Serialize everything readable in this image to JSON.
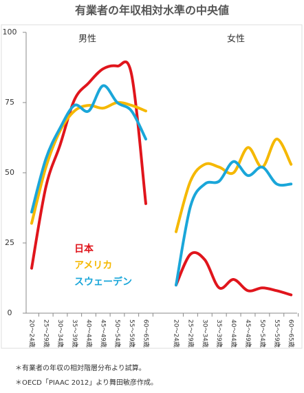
{
  "chart_data": {
    "type": "line",
    "title": "有業者の年収相対水準の中央値",
    "ylim": [
      0,
      100
    ],
    "yticks": [
      0,
      25,
      50,
      75,
      100
    ],
    "categories": [
      "20～24歳",
      "25～29歳",
      "30～34歳",
      "35～39歳",
      "40～44歳",
      "45～49歳",
      "50～54歳",
      "55～59歳",
      "60～65歳"
    ],
    "series": [
      {
        "name": "日本",
        "color": "#e0151c"
      },
      {
        "name": "アメリカ",
        "color": "#f5b800"
      },
      {
        "name": "スウェーデン",
        "color": "#1aa6d9"
      }
    ],
    "panels": [
      {
        "title": "男性",
        "series": [
          {
            "values": [
              16,
              45,
              60,
              76,
              82,
              87,
              88,
              85,
              39
            ]
          },
          {
            "values": [
              32,
              52,
              65,
              72,
              74,
              73,
              75,
              74,
              72
            ]
          },
          {
            "values": [
              36,
              55,
              66,
              74,
              72,
              81,
              75,
              72,
              62
            ]
          }
        ]
      },
      {
        "title": "女性",
        "series": [
          {
            "values": [
              10,
              21,
              19,
              9,
              12,
              8,
              9,
              8,
              6.5
            ]
          },
          {
            "values": [
              29,
              47,
              53,
              52,
              50,
              59,
              52,
              62,
              53
            ]
          },
          {
            "values": [
              10,
              38,
              46,
              47,
              54,
              49,
              52,
              46,
              46
            ]
          }
        ]
      }
    ],
    "notes": [
      "＊有業者の年収の相対階層分布より試算。",
      "＊OECD「PIAAC 2012」より舞田敏彦作成。"
    ]
  }
}
